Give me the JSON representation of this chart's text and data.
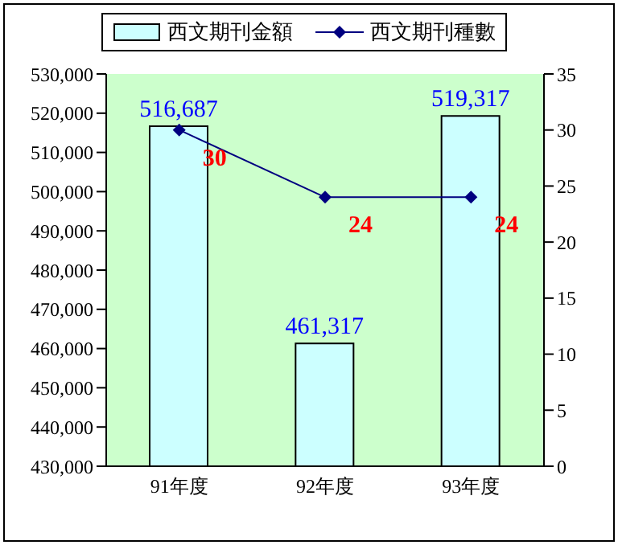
{
  "chart_data": {
    "type": "bar",
    "categories": [
      "91年度",
      "92年度",
      "93年度"
    ],
    "series": [
      {
        "name": "西文期刊金額",
        "color": "#ccffff",
        "values": [
          516687,
          461317,
          519317
        ],
        "value_labels": [
          "516,687",
          "461,317",
          "519,317"
        ]
      },
      {
        "name": "西文期刊種數",
        "type": "line",
        "axis": "y2",
        "color": "#000080",
        "values": [
          30,
          24,
          24
        ]
      }
    ],
    "ylim": [
      430000,
      530000
    ],
    "yticks": [
      {
        "value": 430000,
        "label": "430,000"
      },
      {
        "value": 440000,
        "label": "440,000"
      },
      {
        "value": 450000,
        "label": "450,000"
      },
      {
        "value": 460000,
        "label": "460,000"
      },
      {
        "value": 470000,
        "label": "470,000"
      },
      {
        "value": 480000,
        "label": "480,000"
      },
      {
        "value": 490000,
        "label": "490,000"
      },
      {
        "value": 500000,
        "label": "500,000"
      },
      {
        "value": 510000,
        "label": "510,000"
      },
      {
        "value": 520000,
        "label": "520,000"
      },
      {
        "value": 530000,
        "label": "530,000"
      }
    ],
    "y2lim": [
      0,
      35
    ],
    "y2ticks": [
      0,
      5,
      10,
      15,
      20,
      25,
      30,
      35
    ],
    "data_labels": true,
    "legend": "top",
    "marker": "diamond",
    "grid": false
  }
}
